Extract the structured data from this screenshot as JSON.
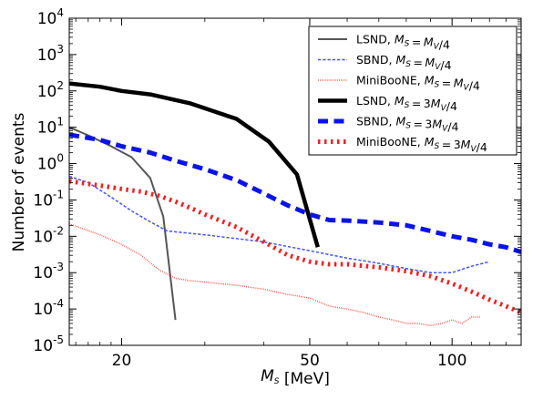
{
  "chart_data": {
    "type": "line",
    "xlabel": "M_S [MeV]",
    "ylabel": "Number of events",
    "xlim": [
      15.5,
      140
    ],
    "ylim": [
      1e-05,
      10000
    ],
    "x_scale": "log",
    "y_scale": "log",
    "x_ticks": [
      {
        "value": 20,
        "label": "20"
      },
      {
        "value": 50,
        "label": "50"
      },
      {
        "value": 100,
        "label": "100"
      }
    ],
    "y_ticks": [
      {
        "value": 1e-05,
        "label": "10-5",
        "base": "10",
        "exp": "-5"
      },
      {
        "value": 0.0001,
        "label": "10-4",
        "base": "10",
        "exp": "-4"
      },
      {
        "value": 0.001,
        "label": "10-3",
        "base": "10",
        "exp": "-3"
      },
      {
        "value": 0.01,
        "label": "10-2",
        "base": "10",
        "exp": "-2"
      },
      {
        "value": 0.1,
        "label": "10-1",
        "base": "10",
        "exp": "-1"
      },
      {
        "value": 1,
        "label": "100",
        "base": "10",
        "exp": "0"
      },
      {
        "value": 10,
        "label": "101",
        "base": "10",
        "exp": "1"
      },
      {
        "value": 100,
        "label": "102",
        "base": "10",
        "exp": "2"
      },
      {
        "value": 1000,
        "label": "103",
        "base": "10",
        "exp": "3"
      },
      {
        "value": 10000,
        "label": "104",
        "base": "10",
        "exp": "4"
      }
    ],
    "grid": false,
    "legend_position": "top-right",
    "series": [
      {
        "name": "LSND, M_S = M_V/4",
        "legend_text": "LSND,",
        "legend_math": "M_S = M_V/4",
        "color": "#555555",
        "style": "solid",
        "width": 2,
        "x": [
          15.5,
          17,
          19,
          21,
          23,
          24.5,
          26
        ],
        "y": [
          10,
          6,
          3,
          1.5,
          0.4,
          0.035,
          5e-05
        ]
      },
      {
        "name": "SBND, M_S = M_V/4",
        "legend_text": "SBND,",
        "legend_math": "M_S = M_V/4",
        "color": "#4455ee",
        "style": "dashed",
        "width": 1.5,
        "x": [
          15.5,
          17,
          19,
          21,
          23,
          25,
          30,
          40,
          50,
          60,
          70,
          80,
          90,
          100,
          110,
          120
        ],
        "y": [
          0.45,
          0.3,
          0.12,
          0.05,
          0.025,
          0.014,
          0.011,
          0.007,
          0.004,
          0.0025,
          0.0018,
          0.0013,
          0.001,
          0.001,
          0.0015,
          0.002
        ]
      },
      {
        "name": "MiniBooNE, M_S = M_V/4",
        "legend_text": "MiniBooNE,",
        "legend_math": "M_S = M_V/4",
        "color": "#ee3322",
        "style": "dotted",
        "width": 1.5,
        "x": [
          15.5,
          18,
          20,
          22,
          24,
          26,
          28,
          30,
          35,
          40,
          45,
          50,
          55,
          60,
          65,
          70,
          75,
          80,
          85,
          90,
          95,
          100,
          105,
          110,
          115
        ],
        "y": [
          0.022,
          0.011,
          0.006,
          0.003,
          0.0012,
          0.0007,
          0.0006,
          0.00055,
          0.00045,
          0.00035,
          0.00025,
          0.0002,
          0.00012,
          0.0001,
          8e-05,
          6e-05,
          5e-05,
          4e-05,
          4e-05,
          3.5e-05,
          4e-05,
          5e-05,
          4e-05,
          6e-05,
          6e-05
        ]
      },
      {
        "name": "LSND, M_S = 3M_V/4",
        "legend_text": "LSND,",
        "legend_math": "M_S = 3M_V/4",
        "color": "#000000",
        "style": "solid",
        "width": 4.5,
        "x": [
          15.5,
          18,
          20,
          23,
          28,
          35,
          41,
          47,
          52
        ],
        "y": [
          160,
          130,
          100,
          80,
          45,
          17,
          4,
          0.5,
          0.005
        ]
      },
      {
        "name": "SBND, M_S = 3M_V/4",
        "legend_text": "SBND,",
        "legend_math": "M_S = 3M_V/4",
        "color": "#0a14e8",
        "style": "dashed",
        "width": 5,
        "x": [
          15.5,
          18,
          20,
          23,
          26,
          30,
          35,
          40,
          45,
          50,
          55,
          60,
          70,
          80,
          90,
          100,
          110,
          120,
          130,
          140
        ],
        "y": [
          6.2,
          4.5,
          3,
          2,
          1.2,
          0.7,
          0.35,
          0.15,
          0.07,
          0.04,
          0.028,
          0.027,
          0.024,
          0.02,
          0.014,
          0.01,
          0.008,
          0.006,
          0.005,
          0.0037
        ]
      },
      {
        "name": "MiniBooNE, M_S = 3M_V/4",
        "legend_text": "MiniBooNE,",
        "legend_math": "M_S = 3M_V/4",
        "color": "#ee2222",
        "style": "dotted",
        "width": 5,
        "x": [
          15.5,
          18,
          20,
          22,
          24,
          26,
          28,
          30,
          35,
          40,
          45,
          50,
          55,
          60,
          70,
          80,
          90,
          100,
          110,
          120,
          130,
          140
        ],
        "y": [
          0.33,
          0.25,
          0.2,
          0.17,
          0.13,
          0.09,
          0.06,
          0.04,
          0.018,
          0.007,
          0.003,
          0.002,
          0.0017,
          0.0017,
          0.0014,
          0.0011,
          0.0008,
          0.0005,
          0.0003,
          0.00018,
          0.00012,
          8e-05
        ]
      }
    ]
  }
}
